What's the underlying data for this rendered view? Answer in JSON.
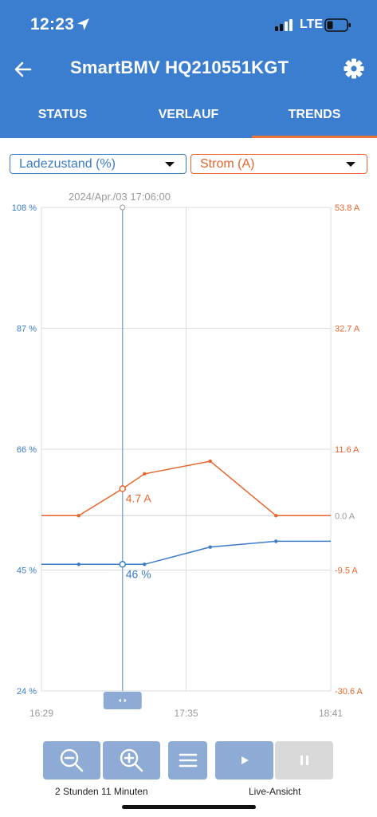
{
  "status_bar": {
    "time": "12:23",
    "network": "LTE"
  },
  "app": {
    "title": "SmartBMV HQ210551KGT"
  },
  "tabs": [
    {
      "label": "STATUS",
      "active": false
    },
    {
      "label": "VERLAUF",
      "active": false
    },
    {
      "label": "TRENDS",
      "active": true
    }
  ],
  "selectors": {
    "left": {
      "label": "Ladezustand (%)",
      "color": "#3b7cc9"
    },
    "right": {
      "label": "Strom (A)",
      "color": "#e8652b"
    }
  },
  "chart_data": {
    "type": "line",
    "cursor_label": "2024/Apr./03 17:06:00",
    "x_tick_labels": [
      "16:29",
      "17:35",
      "18:41"
    ],
    "x_domain_minutes": [
      0,
      132
    ],
    "cursor_x_minutes": 37,
    "left_axis": {
      "ticks": [
        "108 %",
        "87 %",
        "66 %",
        "45 %",
        "24 %"
      ],
      "range": [
        24,
        108
      ]
    },
    "right_axis": {
      "ticks": [
        "53.8 A",
        "32.7 A",
        "11.6 A",
        "0.0 A",
        "-9.5 A",
        "-30.6 A"
      ],
      "range": [
        -30.6,
        53.8
      ]
    },
    "series": [
      {
        "name": "Ladezustand (%)",
        "axis": "left",
        "color": "#3b7cc9",
        "x_minutes": [
          0,
          17,
          37,
          47,
          77,
          107,
          132
        ],
        "values": [
          46,
          46,
          46,
          46,
          49,
          50,
          50
        ],
        "markers_at_index": [
          1,
          2,
          3,
          4,
          5
        ],
        "cursor_value_label": "46 %"
      },
      {
        "name": "Strom (A)",
        "axis": "right",
        "color": "#e8652b",
        "x_minutes": [
          0,
          17,
          37,
          47,
          77,
          107,
          132
        ],
        "values": [
          0,
          0,
          4.7,
          7.3,
          9.5,
          0,
          0
        ],
        "markers_at_index": [
          1,
          2,
          3,
          4,
          5
        ],
        "cursor_value_label": "4.7 A"
      }
    ]
  },
  "footer": {
    "range_label": "2 Stunden 11 Minuten",
    "live_label": "Live-Ansicht"
  }
}
